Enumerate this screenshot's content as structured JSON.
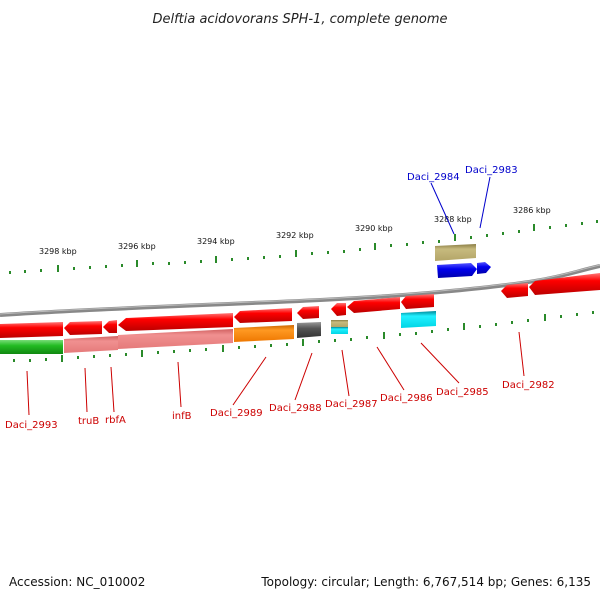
{
  "title": "Delftia acidovorans SPH-1, complete genome",
  "footer": {
    "accession": "Accession: NC_010002",
    "topology": "Topology: circular; Length: 6,767,514 bp; Genes: 6,135"
  },
  "scale_labels": [
    "3298 kbp",
    "3296 kbp",
    "3294 kbp",
    "3292 kbp",
    "3290 kbp",
    "3288 kbp",
    "3286 kbp"
  ],
  "gene_labels": {
    "daci_2993": "Daci_2993",
    "trub": "truB",
    "rbfa": "rbfA",
    "infb": "infB",
    "daci_2989": "Daci_2989",
    "daci_2988": "Daci_2988",
    "daci_2987": "Daci_2987",
    "daci_2986": "Daci_2986",
    "daci_2985": "Daci_2985",
    "daci_2982": "Daci_2982",
    "daci_2984": "Daci_2984",
    "daci_2983": "Daci_2983"
  },
  "colors": {
    "red": "#ee1111",
    "blue": "#0000dd",
    "olive": "#b5a86a",
    "green": "#33bb33",
    "salmon": "#ee8888",
    "orange": "#ff8800",
    "gray": "#666666",
    "cyan": "#00e5ee",
    "tick_green": "#2a8a2a"
  }
}
